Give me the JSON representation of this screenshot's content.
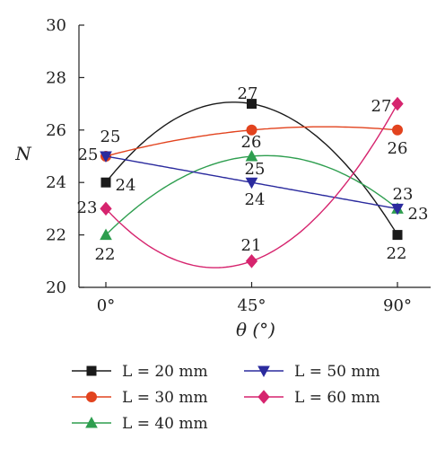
{
  "chart_data": {
    "type": "line",
    "xlabel": "θ (°)",
    "ylabel": "N",
    "categories": [
      "0°",
      "45°",
      "90°"
    ],
    "x": [
      0,
      45,
      90
    ],
    "ylim": [
      20,
      30
    ],
    "yticks": [
      20,
      22,
      24,
      26,
      28,
      30
    ],
    "grid": false,
    "legend_position": "bottom",
    "series": [
      {
        "name": "L = 20 mm",
        "values": [
          24,
          27,
          22
        ],
        "color": "#1a1a1a",
        "marker": "square"
      },
      {
        "name": "L = 30 mm",
        "values": [
          25,
          26,
          26
        ],
        "color": "#e2431e",
        "marker": "circle"
      },
      {
        "name": "L = 40 mm",
        "values": [
          22,
          25,
          23
        ],
        "color": "#2e9e4f",
        "marker": "triangle-up"
      },
      {
        "name": "L = 50 mm",
        "values": [
          25,
          24,
          23
        ],
        "color": "#2b2b9e",
        "marker": "triangle-down"
      },
      {
        "name": "L = 60 mm",
        "values": [
          23,
          21,
          27
        ],
        "color": "#d6246e",
        "marker": "diamond"
      }
    ],
    "data_labels": [
      "27",
      "25",
      "25",
      "24",
      "26",
      "25",
      "24",
      "23",
      "22",
      "21",
      "27",
      "26",
      "23",
      "23",
      "22"
    ]
  }
}
